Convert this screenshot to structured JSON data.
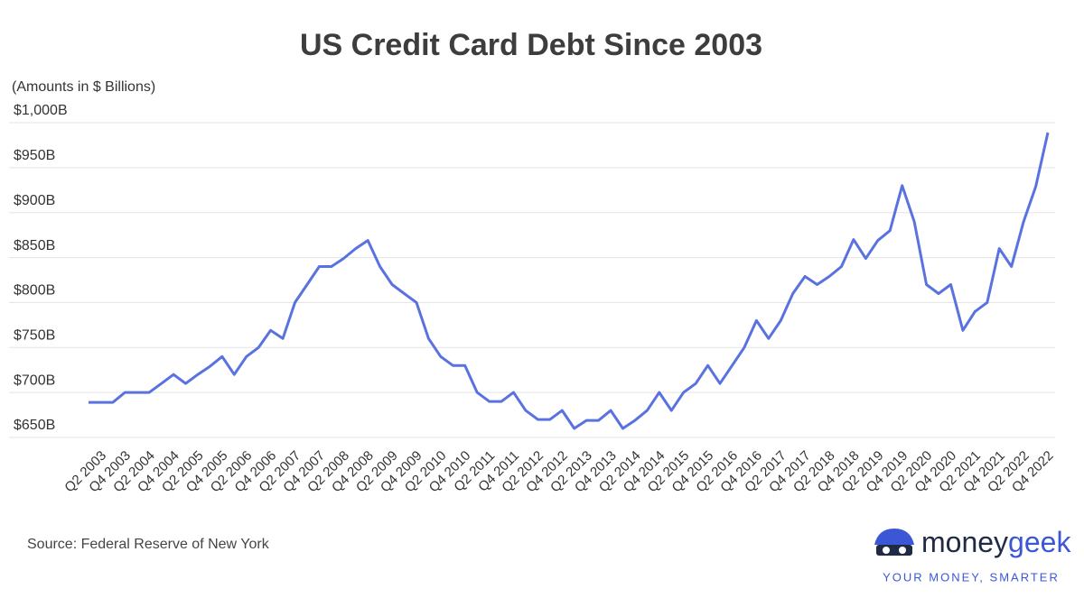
{
  "chart_data": {
    "type": "line",
    "title": "US Credit Card Debt Since 2003",
    "subtitle": "(Amounts in $ Billions)",
    "source": "Source: Federal Reserve of New York",
    "categories": [
      null,
      "Q2 2003",
      null,
      "Q4 2003",
      null,
      "Q2 2004",
      null,
      "Q4 2004",
      null,
      "Q2 2005",
      null,
      "Q4 2005",
      null,
      "Q2 2006",
      null,
      "Q4 2006",
      null,
      "Q2 2007",
      null,
      "Q4 2007",
      null,
      "Q2 2008",
      null,
      "Q4 2008",
      null,
      "Q2 2009",
      null,
      "Q4 2009",
      null,
      "Q2 2010",
      null,
      "Q4 2010",
      null,
      "Q2 2011",
      null,
      "Q4 2011",
      null,
      "Q2 2012",
      null,
      "Q4 2012",
      null,
      "Q2 2013",
      null,
      "Q4 2013",
      null,
      "Q2 2014",
      null,
      "Q4 2014",
      null,
      "Q2 2015",
      null,
      "Q4 2015",
      null,
      "Q2 2016",
      null,
      "Q4 2016",
      null,
      "Q2 2017",
      null,
      "Q4 2017",
      null,
      "Q2 2018",
      null,
      "Q4 2018",
      null,
      "Q2 2019",
      null,
      "Q4 2019",
      null,
      "Q2 2020",
      null,
      "Q4 2020",
      null,
      "Q2 2021",
      null,
      "Q4 2021",
      null,
      "Q2 2022",
      null,
      "Q4 2022"
    ],
    "values": [
      689,
      689,
      689,
      700,
      700,
      700,
      710,
      720,
      710,
      720,
      729,
      740,
      720,
      740,
      750,
      769,
      760,
      800,
      820,
      840,
      840,
      849,
      860,
      869,
      840,
      820,
      810,
      800,
      760,
      740,
      730,
      730,
      700,
      690,
      690,
      700,
      680,
      670,
      670,
      680,
      660,
      669,
      669,
      680,
      660,
      669,
      680,
      700,
      680,
      700,
      710,
      730,
      710,
      730,
      750,
      780,
      760,
      780,
      810,
      829,
      820,
      829,
      840,
      870,
      849,
      869,
      880,
      930,
      890,
      820,
      810,
      820,
      769,
      790,
      800,
      860,
      840,
      890,
      929,
      989
    ],
    "color": "#5a72e0",
    "ylim": [
      650,
      1000
    ],
    "yticks": [
      {
        "value": 650,
        "label": "$650B"
      },
      {
        "value": 700,
        "label": "$700B"
      },
      {
        "value": 750,
        "label": "$750B"
      },
      {
        "value": 800,
        "label": "$800B"
      },
      {
        "value": 850,
        "label": "$850B"
      },
      {
        "value": 900,
        "label": "$900B"
      },
      {
        "value": 950,
        "label": "$950B"
      },
      {
        "value": 1000,
        "label": "$1,000B"
      }
    ],
    "grid": true
  },
  "brand": {
    "name_first": "money",
    "name_second": "geek",
    "tagline": "YOUR MONEY, SMARTER"
  }
}
